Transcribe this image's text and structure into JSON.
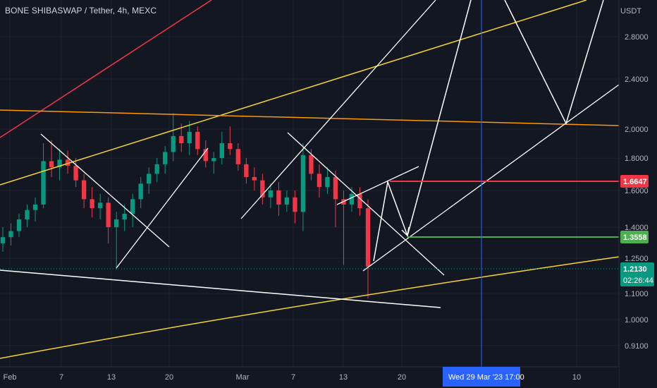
{
  "header": {
    "title": "BONE SHIBASWAP / Tether, 4h, MEXC",
    "unit": "USDT"
  },
  "chart_data": {
    "type": "candlestick",
    "title": "BONE SHIBASWAP / Tether, 4h, MEXC",
    "y_axis_unit": "USDT",
    "y_scale": "log",
    "y_ticks": [
      "2.8000",
      "2.4000",
      "2.0000",
      "1.8000",
      "1.6000",
      "1.4000",
      "1.2500",
      "1.1000",
      "1.0000",
      "0.9100"
    ],
    "x_ticks": [
      "Feb",
      "7",
      "13",
      "20",
      "Mar",
      "7",
      "13",
      "20",
      "10"
    ],
    "crosshair_label": "Wed 29 Mar '23   17:00",
    "price_tags": [
      {
        "value": "1.6647",
        "role": "resistance",
        "color": "#f23645"
      },
      {
        "value": "1.3558",
        "role": "support",
        "color": "#4caf50"
      },
      {
        "value": "1.2130",
        "role": "last-price",
        "color": "#089981",
        "countdown": "02:26:44"
      }
    ],
    "colors": {
      "up": "#089981",
      "down": "#f23645",
      "background": "#131722",
      "trendline_yellow": "#f7d331",
      "trendline_orange": "#ff9800",
      "trendline_red": "#f23645",
      "drawing": "#ffffff",
      "crosshair": "#2962ff"
    },
    "series": [
      {
        "date": "Jan 30",
        "o": 1.32,
        "h": 1.4,
        "l": 1.28,
        "c": 1.35
      },
      {
        "date": "Jan 31",
        "o": 1.35,
        "h": 1.42,
        "l": 1.31,
        "c": 1.38
      },
      {
        "date": "Feb 1",
        "o": 1.38,
        "h": 1.47,
        "l": 1.35,
        "c": 1.44
      },
      {
        "date": "Feb 2",
        "o": 1.44,
        "h": 1.52,
        "l": 1.4,
        "c": 1.49
      },
      {
        "date": "Feb 3",
        "o": 1.49,
        "h": 1.56,
        "l": 1.43,
        "c": 1.52
      },
      {
        "date": "Feb 4",
        "o": 1.52,
        "h": 1.9,
        "l": 1.5,
        "c": 1.78
      },
      {
        "date": "Feb 5",
        "o": 1.78,
        "h": 1.92,
        "l": 1.68,
        "c": 1.74
      },
      {
        "date": "Feb 6",
        "o": 1.74,
        "h": 1.86,
        "l": 1.66,
        "c": 1.79
      },
      {
        "date": "Feb 7",
        "o": 1.79,
        "h": 1.85,
        "l": 1.7,
        "c": 1.75
      },
      {
        "date": "Feb 8",
        "o": 1.75,
        "h": 1.8,
        "l": 1.62,
        "c": 1.66
      },
      {
        "date": "Feb 9",
        "o": 1.66,
        "h": 1.7,
        "l": 1.5,
        "c": 1.55
      },
      {
        "date": "Feb 10",
        "o": 1.55,
        "h": 1.62,
        "l": 1.45,
        "c": 1.5
      },
      {
        "date": "Feb 11",
        "o": 1.5,
        "h": 1.58,
        "l": 1.44,
        "c": 1.53
      },
      {
        "date": "Feb 12",
        "o": 1.53,
        "h": 1.56,
        "l": 1.32,
        "c": 1.4
      },
      {
        "date": "Feb 13",
        "o": 1.4,
        "h": 1.48,
        "l": 1.2,
        "c": 1.44
      },
      {
        "date": "Feb 14",
        "o": 1.44,
        "h": 1.52,
        "l": 1.38,
        "c": 1.47
      },
      {
        "date": "Feb 15",
        "o": 1.47,
        "h": 1.58,
        "l": 1.4,
        "c": 1.55
      },
      {
        "date": "Feb 16",
        "o": 1.55,
        "h": 1.68,
        "l": 1.5,
        "c": 1.64
      },
      {
        "date": "Feb 17",
        "o": 1.64,
        "h": 1.74,
        "l": 1.58,
        "c": 1.7
      },
      {
        "date": "Feb 18",
        "o": 1.7,
        "h": 1.8,
        "l": 1.65,
        "c": 1.76
      },
      {
        "date": "Feb 19",
        "o": 1.76,
        "h": 1.88,
        "l": 1.7,
        "c": 1.84
      },
      {
        "date": "Feb 20",
        "o": 1.84,
        "h": 2.12,
        "l": 1.78,
        "c": 1.95
      },
      {
        "date": "Feb 21",
        "o": 1.95,
        "h": 2.04,
        "l": 1.84,
        "c": 1.9
      },
      {
        "date": "Feb 22",
        "o": 1.9,
        "h": 2.06,
        "l": 1.82,
        "c": 1.98
      },
      {
        "date": "Feb 23",
        "o": 1.98,
        "h": 2.02,
        "l": 1.82,
        "c": 1.86
      },
      {
        "date": "Feb 24",
        "o": 1.86,
        "h": 1.92,
        "l": 1.74,
        "c": 1.78
      },
      {
        "date": "Feb 25",
        "o": 1.78,
        "h": 1.84,
        "l": 1.7,
        "c": 1.8
      },
      {
        "date": "Feb 26",
        "o": 1.8,
        "h": 1.98,
        "l": 1.76,
        "c": 1.9
      },
      {
        "date": "Feb 27",
        "o": 1.9,
        "h": 2.02,
        "l": 1.82,
        "c": 1.86
      },
      {
        "date": "Feb 28",
        "o": 1.86,
        "h": 1.9,
        "l": 1.72,
        "c": 1.76
      },
      {
        "date": "Mar 1",
        "o": 1.76,
        "h": 1.8,
        "l": 1.64,
        "c": 1.68
      },
      {
        "date": "Mar 2",
        "o": 1.68,
        "h": 1.74,
        "l": 1.6,
        "c": 1.66
      },
      {
        "date": "Mar 3",
        "o": 1.66,
        "h": 1.7,
        "l": 1.52,
        "c": 1.56
      },
      {
        "date": "Mar 4",
        "o": 1.56,
        "h": 1.64,
        "l": 1.5,
        "c": 1.6
      },
      {
        "date": "Mar 5",
        "o": 1.6,
        "h": 1.65,
        "l": 1.46,
        "c": 1.52
      },
      {
        "date": "Mar 6",
        "o": 1.52,
        "h": 1.6,
        "l": 1.48,
        "c": 1.56
      },
      {
        "date": "Mar 7",
        "o": 1.56,
        "h": 1.6,
        "l": 1.42,
        "c": 1.48
      },
      {
        "date": "Mar 8",
        "o": 1.48,
        "h": 1.9,
        "l": 1.38,
        "c": 1.82
      },
      {
        "date": "Mar 9",
        "o": 1.82,
        "h": 1.86,
        "l": 1.66,
        "c": 1.7
      },
      {
        "date": "Mar 10",
        "o": 1.7,
        "h": 1.76,
        "l": 1.56,
        "c": 1.62
      },
      {
        "date": "Mar 11",
        "o": 1.62,
        "h": 1.74,
        "l": 1.58,
        "c": 1.68
      },
      {
        "date": "Mar 12",
        "o": 1.68,
        "h": 1.72,
        "l": 1.4,
        "c": 1.55
      },
      {
        "date": "Mar 13",
        "o": 1.55,
        "h": 1.6,
        "l": 1.22,
        "c": 1.52
      },
      {
        "date": "Mar 14",
        "o": 1.52,
        "h": 1.62,
        "l": 1.48,
        "c": 1.58
      },
      {
        "date": "Mar 15",
        "o": 1.58,
        "h": 1.62,
        "l": 1.46,
        "c": 1.5
      },
      {
        "date": "Mar 16",
        "o": 1.5,
        "h": 1.55,
        "l": 1.08,
        "c": 1.213
      }
    ]
  }
}
